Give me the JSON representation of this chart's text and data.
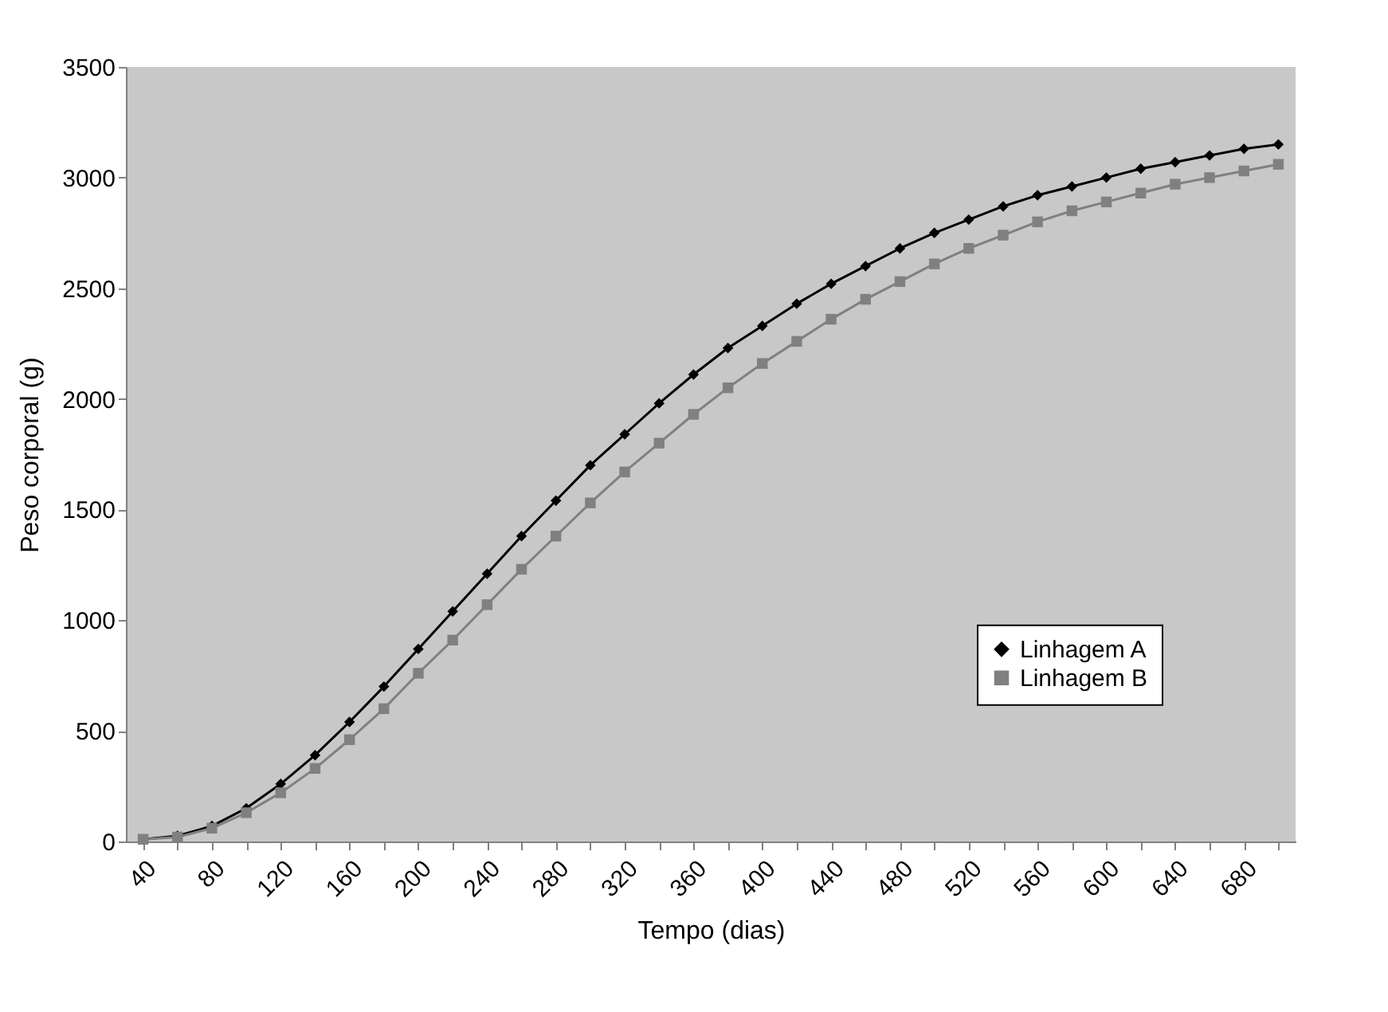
{
  "chart_data": {
    "type": "line",
    "xlabel": "Tempo (dias)",
    "ylabel": "Peso corporal (g)",
    "categories": [
      "40",
      null,
      "80",
      null,
      "120",
      null,
      "160",
      null,
      "200",
      null,
      "240",
      null,
      "280",
      null,
      "320",
      null,
      "360",
      null,
      "400",
      null,
      "440",
      null,
      "480",
      null,
      "520",
      null,
      "560",
      null,
      "600",
      null,
      "640",
      null,
      "680",
      null
    ],
    "series": [
      {
        "name": "Linhagem A",
        "color": "#000000",
        "marker": "diamond",
        "values": [
          10,
          25,
          70,
          150,
          260,
          390,
          540,
          700,
          870,
          1040,
          1210,
          1380,
          1540,
          1700,
          1840,
          1980,
          2110,
          2230,
          2330,
          2430,
          2520,
          2600,
          2680,
          2750,
          2810,
          2870,
          2920,
          2960,
          3000,
          3040,
          3070,
          3100,
          3130,
          3150
        ]
      },
      {
        "name": "Linhagem B",
        "color": "#808080",
        "marker": "square",
        "values": [
          10,
          20,
          60,
          130,
          220,
          330,
          460,
          600,
          760,
          910,
          1070,
          1230,
          1380,
          1530,
          1670,
          1800,
          1930,
          2050,
          2160,
          2260,
          2360,
          2450,
          2530,
          2610,
          2680,
          2740,
          2800,
          2850,
          2890,
          2930,
          2970,
          3000,
          3030,
          3060
        ]
      }
    ],
    "ylim": [
      0,
      3500
    ],
    "yticks": [
      0,
      500,
      1000,
      1500,
      2000,
      2500,
      3000,
      3500
    ],
    "legend": "right",
    "grid": false,
    "line_style": "solid"
  }
}
